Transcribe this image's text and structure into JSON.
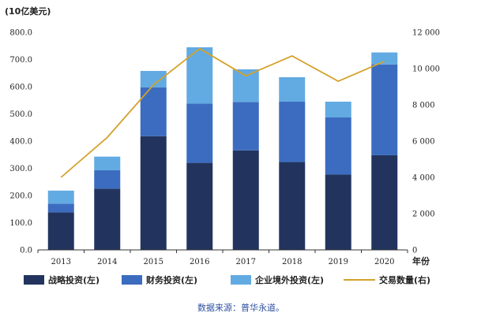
{
  "chart_data": {
    "type": "bar",
    "stacked": true,
    "title": "",
    "y_left_unit": "(10亿美元)",
    "x_unit": "年份",
    "categories": [
      "2013",
      "2014",
      "2015",
      "2016",
      "2017",
      "2018",
      "2019",
      "2020"
    ],
    "y_left": {
      "min": 0,
      "max": 800,
      "step": 100,
      "tick_labels": [
        "0.0",
        "100.0",
        "200.0",
        "300.0",
        "400.0",
        "500.0",
        "600.0",
        "700.0",
        "800.0"
      ]
    },
    "y_right": {
      "min": 0,
      "max": 12000,
      "step": 2000,
      "tick_labels": [
        "0",
        "2 000",
        "4 000",
        "6 000",
        "8 000",
        "10 000",
        "12 000"
      ]
    },
    "series": [
      {
        "name": "战略投资(左)",
        "color": "#22345E",
        "axis": "left",
        "kind": "bar",
        "values": [
          138,
          225,
          418,
          320,
          366,
          323,
          277,
          348
        ]
      },
      {
        "name": "财务投资(左)",
        "color": "#3C6CBF",
        "axis": "left",
        "kind": "bar",
        "values": [
          32,
          68,
          180,
          218,
          178,
          222,
          210,
          334
        ]
      },
      {
        "name": "企业境外投资(左)",
        "color": "#62AAE2",
        "axis": "left",
        "kind": "bar",
        "values": [
          48,
          50,
          60,
          207,
          120,
          90,
          58,
          44
        ]
      },
      {
        "name": "交易数量(右)",
        "color": "#D4A22B",
        "axis": "right",
        "kind": "line",
        "values": [
          4000,
          6200,
          9100,
          11100,
          9600,
          10700,
          9300,
          10400
        ]
      }
    ],
    "source": "数据来源：普华永道。"
  }
}
